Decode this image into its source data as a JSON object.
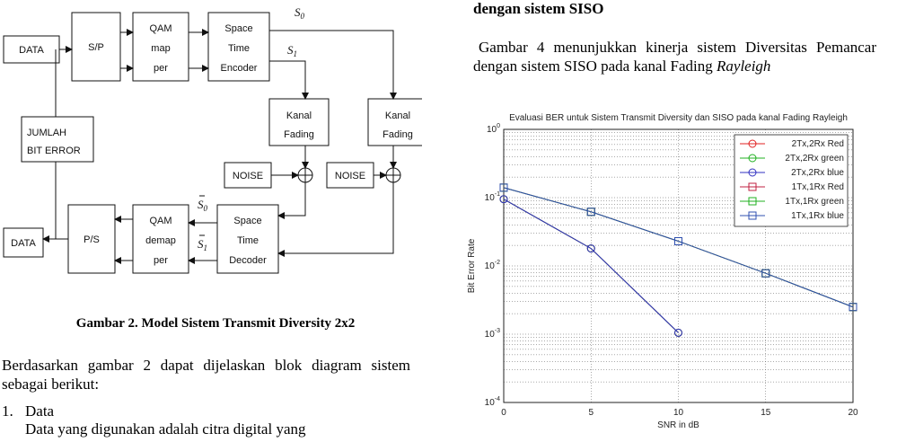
{
  "diagram": {
    "blocks": {
      "data_in": "DATA",
      "sp": "S/P",
      "qam_map": [
        "QAM",
        "map",
        "per"
      ],
      "stc_enc": [
        "Space",
        "Time",
        "Encoder"
      ],
      "kanal1": [
        "Kanal",
        "Fading"
      ],
      "kanal2": [
        "Kanal",
        "Fading"
      ],
      "noise1": "NOISE",
      "noise2": "NOISE",
      "jumlah": [
        "JUMLAH",
        "BIT ERROR"
      ],
      "data_out": "DATA",
      "ps": "P/S",
      "qam_demap": [
        "QAM",
        "demap",
        "per"
      ],
      "stc_dec": [
        "Space",
        "Time",
        "Decoder"
      ]
    },
    "signals": {
      "s0": "S",
      "s0_sub": "0",
      "s1": "S",
      "s1_sub": "1"
    }
  },
  "left": {
    "caption": "Gambar 2. Model Sistem Transmit Diversity 2x2",
    "paragraph": "Berdasarkan gambar 2 dapat dijelaskan blok diagram sistem sebagai berikut:",
    "item_number": "1.",
    "item_title": "Data",
    "item_desc": "Data yang digunakan adalah citra digital yang"
  },
  "right": {
    "heading": "dengan sistem SISO",
    "paragraph": "Gambar 4 menunjukkan kinerja sistem  Diversitas Pemancar dengan sistem SISO pada kanal Fading",
    "paragraph_italic": "Rayleigh"
  },
  "chart_data": {
    "type": "line",
    "title": "Evaluasi BER untuk Sistem Transmit Diversity dan SISO pada kanal Fading Rayleigh",
    "xlabel": "SNR in dB",
    "ylabel": "Bit Error Rate",
    "xlim": [
      0,
      20
    ],
    "ylim": [
      0.0001,
      1
    ],
    "yscale": "log",
    "grid": true,
    "legend_position": "top-right",
    "xticks": [
      "0",
      "5",
      "10",
      "15",
      "20"
    ],
    "yticks": [
      {
        "value": 1,
        "base": "10",
        "exp": "0"
      },
      {
        "value": 0.1,
        "base": "10",
        "exp": "-1"
      },
      {
        "value": 0.01,
        "base": "10",
        "exp": "-2"
      },
      {
        "value": 0.001,
        "base": "10",
        "exp": "-3"
      },
      {
        "value": 0.0001,
        "base": "10",
        "exp": "-4"
      }
    ],
    "series": [
      {
        "name": "2Tx,2Rx Red",
        "color": "#e02020",
        "marker": "circle",
        "x": [
          0,
          5,
          10
        ],
        "y": [
          0.095,
          0.018,
          0.00105
        ]
      },
      {
        "name": "2Tx,2Rx green",
        "color": "#20b020",
        "marker": "circle",
        "x": [
          0,
          5,
          10
        ],
        "y": [
          0.095,
          0.018,
          0.00105
        ]
      },
      {
        "name": "2Tx,2Rx blue",
        "color": "#3030c0",
        "marker": "circle",
        "x": [
          0,
          5,
          10
        ],
        "y": [
          0.095,
          0.018,
          0.00105
        ]
      },
      {
        "name": "1Tx,1Rx Red",
        "color": "#c02040",
        "marker": "square",
        "x": [
          0,
          5,
          10,
          15,
          20
        ],
        "y": [
          0.14,
          0.062,
          0.023,
          0.0078,
          0.0025
        ]
      },
      {
        "name": "1Tx,1Rx green",
        "color": "#20b020",
        "marker": "square",
        "x": [
          0,
          5,
          10,
          15,
          20
        ],
        "y": [
          0.14,
          0.062,
          0.023,
          0.0078,
          0.0025
        ]
      },
      {
        "name": "1Tx,1Rx blue",
        "color": "#3050b0",
        "marker": "square",
        "x": [
          0,
          5,
          10,
          15,
          20
        ],
        "y": [
          0.14,
          0.062,
          0.023,
          0.0078,
          0.0025
        ]
      }
    ]
  }
}
